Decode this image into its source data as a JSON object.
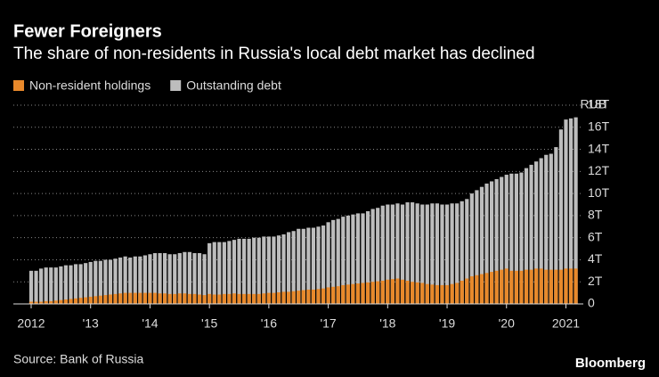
{
  "chart_data": {
    "type": "bar",
    "title": "Fewer Foreigners",
    "subtitle": "The share of non-residents in Russia's local debt market has declined",
    "y_unit": "RUB",
    "source": "Source: Bank of Russia",
    "brand": "Bloomberg",
    "categories": [
      "2012",
      null,
      null,
      null,
      null,
      null,
      null,
      null,
      null,
      null,
      null,
      null,
      "'13",
      null,
      null,
      null,
      null,
      null,
      null,
      null,
      null,
      null,
      null,
      null,
      "'14",
      null,
      null,
      null,
      null,
      null,
      null,
      null,
      null,
      null,
      null,
      null,
      "'15",
      null,
      null,
      null,
      null,
      null,
      null,
      null,
      null,
      null,
      null,
      null,
      "'16",
      null,
      null,
      null,
      null,
      null,
      null,
      null,
      null,
      null,
      null,
      null,
      "'17",
      null,
      null,
      null,
      null,
      null,
      null,
      null,
      null,
      null,
      null,
      null,
      "'18",
      null,
      null,
      null,
      null,
      null,
      null,
      null,
      null,
      null,
      null,
      null,
      "'19",
      null,
      null,
      null,
      null,
      null,
      null,
      null,
      null,
      null,
      null,
      null,
      "'20",
      null,
      null,
      null,
      null,
      null,
      null,
      null,
      null,
      null,
      null,
      null,
      "2021",
      null,
      null
    ],
    "series": [
      {
        "name": "Non-resident holdings",
        "color": "#e8892b",
        "values": [
          0.2,
          0.2,
          0.2,
          0.25,
          0.25,
          0.3,
          0.35,
          0.4,
          0.45,
          0.5,
          0.55,
          0.6,
          0.65,
          0.7,
          0.75,
          0.8,
          0.85,
          0.9,
          0.95,
          1.0,
          1.0,
          1.0,
          1.0,
          1.0,
          1.0,
          1.0,
          0.95,
          0.95,
          0.9,
          0.9,
          0.95,
          0.95,
          0.9,
          0.9,
          0.85,
          0.8,
          0.9,
          0.85,
          0.85,
          0.9,
          0.9,
          0.95,
          0.9,
          0.9,
          0.9,
          0.9,
          0.9,
          0.95,
          1.0,
          1.0,
          1.05,
          1.1,
          1.1,
          1.15,
          1.2,
          1.25,
          1.3,
          1.3,
          1.35,
          1.4,
          1.5,
          1.55,
          1.6,
          1.7,
          1.75,
          1.8,
          1.85,
          1.9,
          1.95,
          2.0,
          2.05,
          2.1,
          2.2,
          2.25,
          2.3,
          2.2,
          2.1,
          2.0,
          1.95,
          1.9,
          1.8,
          1.75,
          1.7,
          1.7,
          1.7,
          1.8,
          1.9,
          2.1,
          2.3,
          2.5,
          2.6,
          2.7,
          2.8,
          2.9,
          3.0,
          3.1,
          3.2,
          3.0,
          3.0,
          3.0,
          3.1,
          3.1,
          3.2,
          3.2,
          3.1,
          3.1,
          3.1,
          3.1,
          3.2,
          3.2,
          3.2
        ]
      },
      {
        "name": "Outstanding debt",
        "color": "#bdbdbd",
        "values": [
          3.0,
          3.0,
          3.2,
          3.3,
          3.3,
          3.3,
          3.4,
          3.5,
          3.5,
          3.6,
          3.6,
          3.7,
          3.8,
          3.9,
          3.9,
          4.0,
          4.0,
          4.1,
          4.2,
          4.3,
          4.2,
          4.3,
          4.3,
          4.4,
          4.5,
          4.6,
          4.6,
          4.6,
          4.5,
          4.5,
          4.6,
          4.7,
          4.7,
          4.6,
          4.6,
          4.5,
          5.5,
          5.6,
          5.6,
          5.6,
          5.7,
          5.8,
          5.9,
          5.9,
          5.9,
          6.0,
          6.0,
          6.1,
          6.1,
          6.1,
          6.2,
          6.3,
          6.5,
          6.6,
          6.8,
          6.8,
          6.9,
          6.9,
          7.0,
          7.1,
          7.4,
          7.6,
          7.7,
          7.9,
          8.0,
          8.1,
          8.2,
          8.2,
          8.4,
          8.6,
          8.7,
          8.9,
          9.0,
          9.0,
          9.1,
          9.0,
          9.2,
          9.2,
          9.1,
          9.0,
          9.0,
          9.1,
          9.1,
          9.0,
          9.0,
          9.1,
          9.1,
          9.3,
          9.5,
          10.0,
          10.3,
          10.6,
          10.9,
          11.1,
          11.3,
          11.5,
          11.7,
          11.8,
          11.8,
          11.9,
          12.3,
          12.6,
          12.9,
          13.2,
          13.5,
          13.6,
          14.2,
          15.8,
          16.7,
          16.8,
          16.9
        ]
      }
    ],
    "ylim": [
      0,
      18
    ],
    "yticks": [
      0,
      {
        "value": 2,
        "label": "2T"
      },
      {
        "value": 4,
        "label": "4T"
      },
      {
        "value": 6,
        "label": "6T"
      },
      {
        "value": 8,
        "label": "8T"
      },
      {
        "value": 10,
        "label": "10T"
      },
      {
        "value": 12,
        "label": "12T"
      },
      {
        "value": 14,
        "label": "14T"
      },
      {
        "value": 16,
        "label": "16T"
      },
      {
        "value": 18,
        "label": "18T"
      }
    ],
    "grid": true,
    "overlap": true
  }
}
